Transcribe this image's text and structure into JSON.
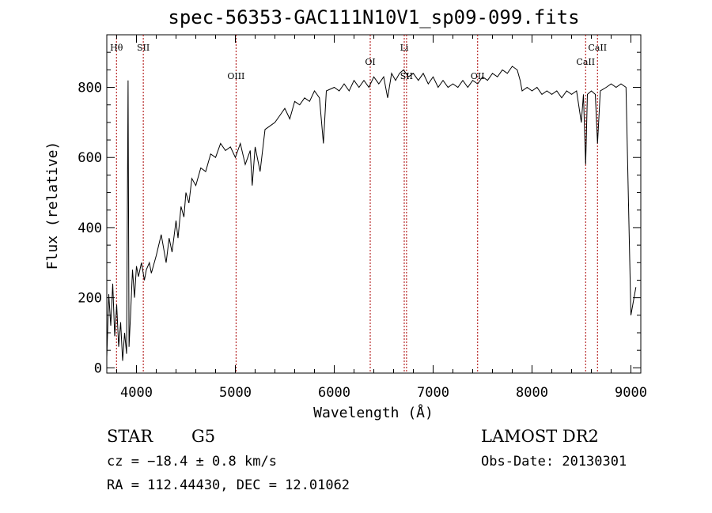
{
  "title": "spec-56353-GAC111N10V1_sp09-099.fits",
  "info": {
    "class": "STAR",
    "subclass": "G5",
    "survey": "LAMOST DR2",
    "cz": "cz = −18.4 ± 0.8 km/s",
    "obs_date": "Obs-Date: 20130301",
    "radec": "RA = 112.44430, DEC =  12.01062"
  },
  "colors": {
    "line": "#000000",
    "marker": "#aa0000",
    "axes": "#000000"
  },
  "chart_data": {
    "type": "line",
    "title": "spec-56353-GAC111N10V1_sp09-099.fits",
    "xlabel": "Wavelength (Å)",
    "ylabel": "Flux (relative)",
    "xlim": [
      3700,
      9100
    ],
    "ylim": [
      -15,
      950
    ],
    "xticks": [
      4000,
      5000,
      6000,
      7000,
      8000,
      9000
    ],
    "yticks": [
      0,
      200,
      400,
      600,
      800
    ],
    "grid": false,
    "series": [
      {
        "points": [
          [
            3700,
            30
          ],
          [
            3720,
            210
          ],
          [
            3740,
            120
          ],
          [
            3760,
            240
          ],
          [
            3780,
            90
          ],
          [
            3800,
            180
          ],
          [
            3820,
            60
          ],
          [
            3840,
            130
          ],
          [
            3860,
            20
          ],
          [
            3880,
            100
          ],
          [
            3900,
            40
          ],
          [
            3915,
            820
          ],
          [
            3925,
            60
          ],
          [
            3940,
            150
          ],
          [
            3960,
            280
          ],
          [
            3980,
            200
          ],
          [
            4000,
            290
          ],
          [
            4020,
            260
          ],
          [
            4050,
            300
          ],
          [
            4080,
            250
          ],
          [
            4100,
            280
          ],
          [
            4130,
            300
          ],
          [
            4150,
            270
          ],
          [
            4200,
            320
          ],
          [
            4250,
            380
          ],
          [
            4300,
            300
          ],
          [
            4330,
            370
          ],
          [
            4360,
            330
          ],
          [
            4400,
            420
          ],
          [
            4420,
            370
          ],
          [
            4450,
            460
          ],
          [
            4480,
            430
          ],
          [
            4500,
            500
          ],
          [
            4530,
            470
          ],
          [
            4560,
            540
          ],
          [
            4600,
            520
          ],
          [
            4650,
            570
          ],
          [
            4700,
            560
          ],
          [
            4750,
            610
          ],
          [
            4800,
            600
          ],
          [
            4850,
            640
          ],
          [
            4900,
            620
          ],
          [
            4950,
            630
          ],
          [
            5000,
            600
          ],
          [
            5050,
            640
          ],
          [
            5100,
            580
          ],
          [
            5150,
            620
          ],
          [
            5170,
            520
          ],
          [
            5200,
            630
          ],
          [
            5250,
            560
          ],
          [
            5300,
            680
          ],
          [
            5350,
            690
          ],
          [
            5400,
            700
          ],
          [
            5450,
            720
          ],
          [
            5500,
            740
          ],
          [
            5550,
            710
          ],
          [
            5600,
            760
          ],
          [
            5650,
            750
          ],
          [
            5700,
            770
          ],
          [
            5750,
            760
          ],
          [
            5800,
            790
          ],
          [
            5850,
            770
          ],
          [
            5890,
            640
          ],
          [
            5920,
            790
          ],
          [
            6000,
            800
          ],
          [
            6050,
            790
          ],
          [
            6100,
            810
          ],
          [
            6150,
            790
          ],
          [
            6200,
            820
          ],
          [
            6250,
            800
          ],
          [
            6300,
            820
          ],
          [
            6350,
            800
          ],
          [
            6400,
            830
          ],
          [
            6450,
            810
          ],
          [
            6500,
            830
          ],
          [
            6540,
            770
          ],
          [
            6580,
            840
          ],
          [
            6620,
            820
          ],
          [
            6660,
            840
          ],
          [
            6700,
            850
          ],
          [
            6750,
            830
          ],
          [
            6800,
            840
          ],
          [
            6850,
            820
          ],
          [
            6900,
            840
          ],
          [
            6950,
            810
          ],
          [
            7000,
            830
          ],
          [
            7050,
            800
          ],
          [
            7100,
            820
          ],
          [
            7150,
            800
          ],
          [
            7200,
            810
          ],
          [
            7250,
            800
          ],
          [
            7300,
            820
          ],
          [
            7350,
            800
          ],
          [
            7400,
            820
          ],
          [
            7450,
            810
          ],
          [
            7500,
            830
          ],
          [
            7550,
            820
          ],
          [
            7600,
            840
          ],
          [
            7650,
            830
          ],
          [
            7700,
            850
          ],
          [
            7750,
            840
          ],
          [
            7800,
            860
          ],
          [
            7850,
            850
          ],
          [
            7880,
            820
          ],
          [
            7900,
            790
          ],
          [
            7950,
            800
          ],
          [
            8000,
            790
          ],
          [
            8050,
            800
          ],
          [
            8100,
            780
          ],
          [
            8150,
            790
          ],
          [
            8200,
            780
          ],
          [
            8250,
            790
          ],
          [
            8300,
            770
          ],
          [
            8350,
            790
          ],
          [
            8400,
            780
          ],
          [
            8450,
            790
          ],
          [
            8498,
            700
          ],
          [
            8520,
            780
          ],
          [
            8542,
            580
          ],
          [
            8560,
            780
          ],
          [
            8600,
            790
          ],
          [
            8640,
            780
          ],
          [
            8662,
            640
          ],
          [
            8690,
            790
          ],
          [
            8750,
            800
          ],
          [
            8800,
            810
          ],
          [
            8850,
            800
          ],
          [
            8900,
            810
          ],
          [
            8950,
            800
          ],
          [
            9000,
            150
          ],
          [
            9050,
            230
          ]
        ]
      }
    ],
    "lines": [
      {
        "label": "Hθ",
        "wavelength": 3798,
        "row": 0
      },
      {
        "label": "SII",
        "wavelength": 4069,
        "row": 0
      },
      {
        "label": "OIII",
        "wavelength": 5007,
        "row": 2
      },
      {
        "label": "OI",
        "wavelength": 6364,
        "row": 1
      },
      {
        "label": "Li",
        "wavelength": 6708,
        "row": 0
      },
      {
        "label": "SII",
        "wavelength": 6731,
        "row": 2
      },
      {
        "label": "OII",
        "wavelength": 7450,
        "row": 2
      },
      {
        "label": "CaII",
        "wavelength": 8542,
        "row": 1
      },
      {
        "label": "CaII",
        "wavelength": 8662,
        "row": 0
      }
    ]
  }
}
